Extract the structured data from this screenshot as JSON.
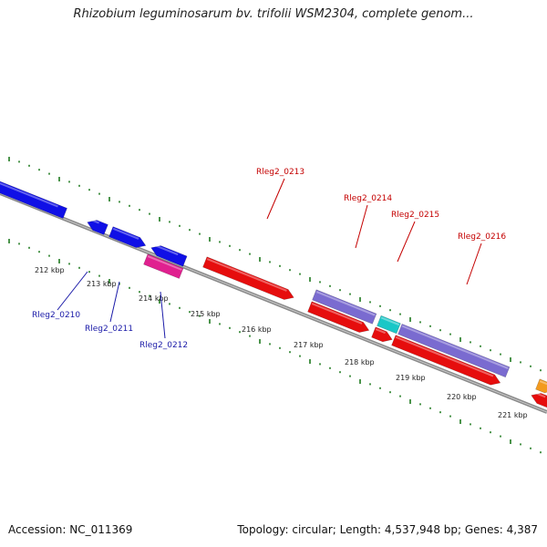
{
  "title": "Rhizobium leguminosarum bv. trifolii WSM2304, complete genom...",
  "accession": "Accession: NC_011369",
  "topology": "Topology: circular; Length: 4,537,948 bp; Genes: 4,387",
  "colors": {
    "blue": "#1010e6",
    "red": "#e60d0d",
    "magenta": "#e0208f",
    "purple": "#7a6bd0",
    "cyan": "#19c7c7",
    "orange": "#f39a1e",
    "tick": "#1e7a1e",
    "backbone": "#8a8a8a",
    "label_blue": "#1a1aa8",
    "label_red": "#c40000"
  },
  "kbp_labels": [
    "212 kbp",
    "213 kbp",
    "214 kbp",
    "215 kbp",
    "216 kbp",
    "217 kbp",
    "218 kbp",
    "219 kbp",
    "220 kbp",
    "221 kbp"
  ],
  "gene_labels": [
    {
      "text": "Rleg2_0210",
      "color": "label_blue"
    },
    {
      "text": "Rleg2_0211",
      "color": "label_blue"
    },
    {
      "text": "Rleg2_0212",
      "color": "label_blue"
    },
    {
      "text": "Rleg2_0213",
      "color": "label_red"
    },
    {
      "text": "Rleg2_0214",
      "color": "label_red"
    },
    {
      "text": "Rleg2_0215",
      "color": "label_red"
    },
    {
      "text": "Rleg2_0216",
      "color": "label_red"
    }
  ]
}
